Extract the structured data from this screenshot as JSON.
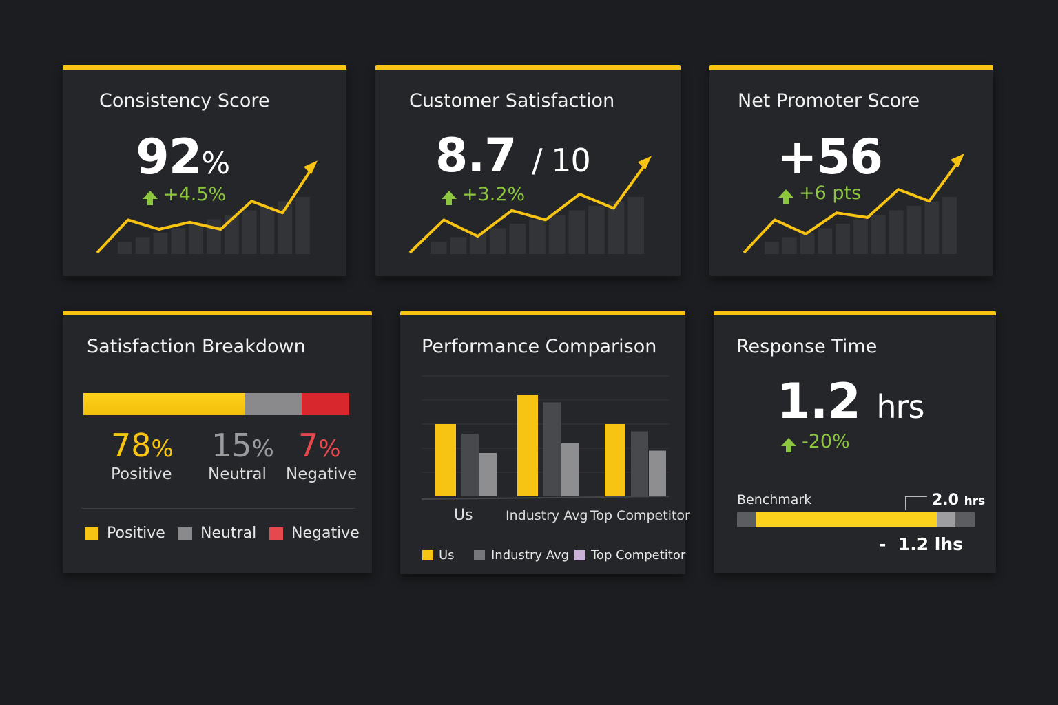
{
  "colors": {
    "accent": "#f8c414",
    "positive": "#8cc63f",
    "neutral": "#8a8a8c",
    "negative": "#d9272e",
    "background": "#1c1d20",
    "card": "#252629"
  },
  "cards": [
    {
      "title": "Consistency Score",
      "value": "92",
      "unit": "%",
      "delta": "+4.5%",
      "delta_icon": "arrow-up-icon",
      "trend": [
        1,
        2.4,
        2.0,
        2.3,
        2.0,
        3.2,
        2.7,
        4.7
      ]
    },
    {
      "title": "Customer Satisfaction",
      "value": "8.7",
      "unit": "/ 10",
      "delta": "+3.2%",
      "delta_icon": "arrow-up-icon",
      "trend": [
        1,
        2.4,
        1.7,
        2.8,
        2.4,
        3.5,
        2.9,
        4.9
      ]
    },
    {
      "title": "Net Promoter Score",
      "value": "+56",
      "unit": "",
      "delta": "+6 pts",
      "delta_icon": "arrow-up-icon",
      "trend": [
        1,
        2.4,
        1.8,
        2.7,
        2.5,
        3.7,
        3.2,
        5.0
      ]
    }
  ],
  "breakdown": {
    "title": "Satisfaction Breakdown",
    "segments": [
      {
        "label": "Positive",
        "value": 78,
        "unit": "%",
        "color": "#f8c414"
      },
      {
        "label": "Neutral",
        "value": 15,
        "unit": "%",
        "color": "#8a8a8c"
      },
      {
        "label": "Negative",
        "value": 7,
        "unit": "%",
        "color": "#d9272e"
      }
    ],
    "legend": [
      "Positive",
      "Neutral",
      "Negative"
    ]
  },
  "chart_data": {
    "type": "bar",
    "title": "Performance Comparison",
    "categories": [
      "Us",
      "Industry Avg",
      "Top Competitor"
    ],
    "series": [
      {
        "name": "Us",
        "color": "#f8c414",
        "values": [
          3.0,
          4.2,
          3.0
        ]
      },
      {
        "name": "Industry Avg",
        "color": "#4a4b4f",
        "values": [
          2.6,
          3.9,
          2.7
        ]
      },
      {
        "name": "Top Competitor",
        "color": "#8e8e90",
        "values": [
          1.8,
          2.2,
          1.9
        ]
      }
    ],
    "legend_colors": [
      "#f8c414",
      "#76777b",
      "#c9b0d6"
    ],
    "ylim": [
      0,
      4.7
    ],
    "grid": true,
    "legend": "bottom"
  },
  "response": {
    "title": "Response Time",
    "value": "1.2",
    "unit": "hrs",
    "delta": "-20%",
    "delta_icon": "arrow-up-icon",
    "benchmark_label": "Benchmark",
    "benchmark_value": "2.0",
    "benchmark_unit": "hrs",
    "current_label": "1.2 lhs",
    "current_prefix": "-"
  }
}
